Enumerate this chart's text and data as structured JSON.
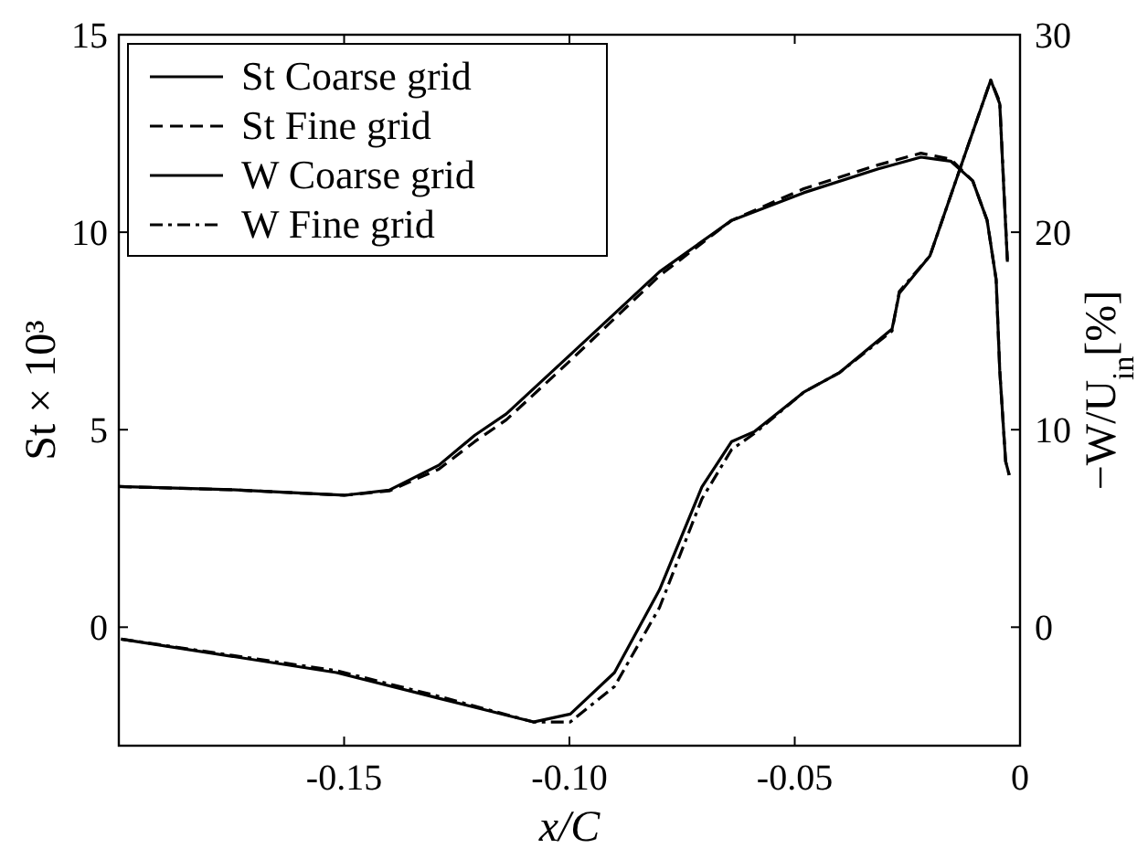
{
  "chart_data": {
    "type": "line",
    "xlabel": "x/C",
    "ylabel": "St × 10³",
    "y2label": "−W/U$_{in}$[%]",
    "xlim": [
      -0.2,
      0
    ],
    "xticks": [
      -0.15,
      {
        "value": -0.1,
        "label": "-0.10"
      },
      -0.05,
      0
    ],
    "ylim": [
      -3,
      15
    ],
    "yticks": [
      0,
      5,
      10,
      15
    ],
    "y2lim": [
      -6,
      30
    ],
    "y2ticks": [
      0,
      10,
      20,
      30
    ],
    "legend": "top left",
    "grid": false,
    "series": [
      {
        "name": "St Coarse grid",
        "color": "#000000",
        "line_style": "solid",
        "x": [
          -0.2,
          -0.175,
          -0.15,
          -0.14,
          -0.129,
          -0.121,
          -0.114,
          -0.0998,
          -0.08,
          -0.064,
          -0.048,
          -0.0316,
          -0.022,
          -0.0154,
          -0.0105,
          -0.0073,
          -0.0053,
          -0.0045,
          -0.0032,
          -0.0024
        ],
        "values": [
          3.56,
          3.48,
          3.34,
          3.47,
          4.1,
          4.86,
          5.4,
          6.9,
          9.0,
          10.3,
          11.0,
          11.6,
          11.9,
          11.8,
          11.3,
          10.3,
          8.8,
          6.5,
          4.2,
          3.85
        ]
      },
      {
        "name": "St Fine grid",
        "color": "#000000",
        "line_style": "dashed",
        "x": [
          -0.2,
          -0.175,
          -0.15,
          -0.14,
          -0.129,
          -0.121,
          -0.114,
          -0.0998,
          -0.08,
          -0.064,
          -0.048,
          -0.0316,
          -0.022,
          -0.0154,
          -0.0105,
          -0.0073,
          -0.0053,
          -0.0045,
          -0.0032,
          -0.0024
        ],
        "values": [
          3.56,
          3.48,
          3.34,
          3.45,
          4.0,
          4.7,
          5.25,
          6.75,
          8.9,
          10.3,
          11.1,
          11.7,
          12.0,
          11.85,
          11.3,
          10.3,
          8.8,
          6.5,
          4.2,
          3.85
        ]
      },
      {
        "name": "W Coarse grid",
        "color": "#000000",
        "line_style": "solid",
        "axis": "y2",
        "x": [
          -0.1995,
          -0.1517,
          -0.129,
          -0.108,
          -0.0998,
          -0.09,
          -0.08,
          -0.0706,
          -0.064,
          -0.059,
          -0.048,
          -0.04,
          -0.0284,
          -0.0268,
          -0.02,
          -0.0138,
          -0.0065,
          -0.0045,
          -0.0036,
          -0.0028
        ],
        "values": [
          -0.6,
          -2.3,
          -3.6,
          -4.8,
          -4.4,
          -2.3,
          1.9,
          7.1,
          9.4,
          9.9,
          11.9,
          12.9,
          15.1,
          16.9,
          18.8,
          22.9,
          27.7,
          26.5,
          22.2,
          18.5
        ]
      },
      {
        "name": "W Fine grid",
        "color": "#000000",
        "line_style": "dashdot",
        "axis": "y2",
        "x": [
          -0.1995,
          -0.1517,
          -0.129,
          -0.108,
          -0.0998,
          -0.09,
          -0.08,
          -0.0706,
          -0.064,
          -0.059,
          -0.048,
          -0.04,
          -0.0284,
          -0.0268,
          -0.02,
          -0.0138,
          -0.0065,
          -0.0045,
          -0.0036,
          -0.0028
        ],
        "values": [
          -0.6,
          -2.2,
          -3.5,
          -4.8,
          -4.8,
          -3.0,
          1.0,
          6.5,
          9.0,
          9.8,
          11.9,
          12.9,
          15.0,
          17.0,
          18.8,
          22.9,
          27.7,
          26.6,
          22.3,
          18.6
        ]
      }
    ]
  }
}
